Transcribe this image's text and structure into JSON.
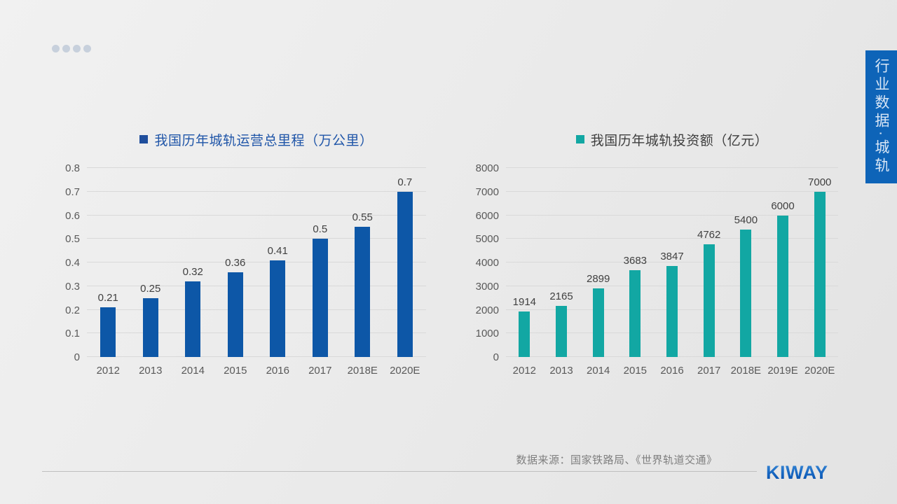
{
  "decoration": {
    "header_dots_count": 4,
    "dot_color": "#c7d0dc"
  },
  "side_tab": {
    "label": "行业数据·城轨",
    "bg_color": "#0e64b8",
    "text_color": "#d9e6f5"
  },
  "footer": {
    "source_text": "数据来源：国家铁路局、《世界轨道交通》",
    "logo_text": "KIWAY",
    "logo_color": "#1464c0"
  },
  "chart_data": [
    {
      "type": "bar",
      "title": "我国历年城轨运营总里程（万公里）",
      "categories": [
        "2012",
        "2013",
        "2014",
        "2015",
        "2016",
        "2017",
        "2018E",
        "2020E"
      ],
      "values": [
        0.21,
        0.25,
        0.32,
        0.36,
        0.41,
        0.5,
        0.55,
        0.7
      ],
      "value_labels": [
        "0.21",
        "0.25",
        "0.32",
        "0.36",
        "0.41",
        "0.5",
        "0.55",
        "0.7"
      ],
      "ylim": [
        0,
        0.8
      ],
      "yticks": [
        "0",
        "0.1",
        "0.2",
        "0.3",
        "0.4",
        "0.5",
        "0.6",
        "0.7",
        "0.8"
      ],
      "grid": true,
      "legend_position": "top",
      "bar_color": "#0d57a7",
      "legend_color": "#1f4e9c",
      "title_color": "#1f55a8"
    },
    {
      "type": "bar",
      "title": "我国历年城轨投资额（亿元）",
      "categories": [
        "2012",
        "2013",
        "2014",
        "2015",
        "2016",
        "2017",
        "2018E",
        "2019E",
        "2020E"
      ],
      "values": [
        1914,
        2165,
        2899,
        3683,
        3847,
        4762,
        5400,
        6000,
        7000
      ],
      "value_labels": [
        "1914",
        "2165",
        "2899",
        "3683",
        "3847",
        "4762",
        "5400",
        "6000",
        "7000"
      ],
      "ylim": [
        0,
        8000
      ],
      "yticks": [
        "0",
        "1000",
        "2000",
        "3000",
        "4000",
        "5000",
        "6000",
        "7000",
        "8000"
      ],
      "grid": true,
      "legend_position": "top",
      "bar_color": "#12a7a3",
      "legend_color": "#12a7a3",
      "title_color": "#3f3f3f"
    }
  ]
}
